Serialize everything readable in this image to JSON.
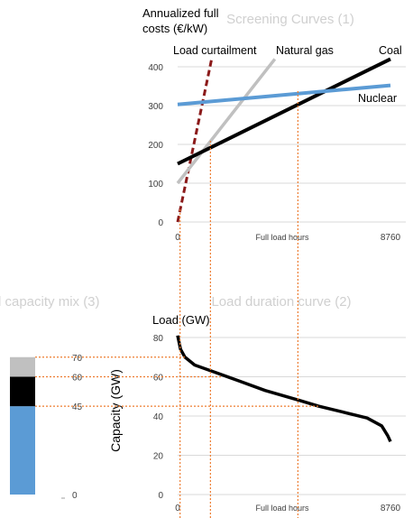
{
  "chart_data": [
    {
      "type": "line",
      "title": "Screening Curves (1)",
      "ylabel": "Annualized full costs (€/kW)",
      "ylabel_lines": [
        "Annualized full",
        "costs (€/kW)"
      ],
      "xlabel": "Full load hours",
      "x_ticks": [
        "0",
        "8760"
      ],
      "y_ticks": [
        "0",
        "100",
        "200",
        "300",
        "400"
      ],
      "xlim": [
        0,
        8760
      ],
      "ylim": [
        0,
        400
      ],
      "grid": true,
      "series": [
        {
          "name": "Load curtailment",
          "color": "#8b1a1a",
          "dashed": true,
          "points": [
            [
              0,
              0
            ],
            [
              1400,
              420
            ]
          ]
        },
        {
          "name": "Natural gas",
          "color": "#c0c0c0",
          "points": [
            [
              0,
              100
            ],
            [
              4000,
              420
            ]
          ]
        },
        {
          "name": "Coal",
          "color": "#000000",
          "points": [
            [
              0,
              150
            ],
            [
              8760,
              420
            ]
          ]
        },
        {
          "name": "Nuclear",
          "color": "#5b9bd5",
          "points": [
            [
              0,
              303
            ],
            [
              8760,
              352
            ]
          ]
        }
      ]
    },
    {
      "type": "line",
      "title": "Load duration curve (2)",
      "ylabel": "Load (GW)",
      "xlabel": "Full load hours",
      "x_ticks": [
        "0",
        "8760"
      ],
      "y_ticks": [
        "0",
        "20",
        "40",
        "60",
        "80"
      ],
      "xlim": [
        0,
        8760
      ],
      "ylim": [
        0,
        80
      ],
      "grid": true,
      "series": [
        {
          "name": "Load",
          "color": "#000000",
          "points": [
            [
              0,
              81
            ],
            [
              120,
              74
            ],
            [
              300,
              70
            ],
            [
              700,
              66
            ],
            [
              1600,
              62
            ],
            [
              2500,
              58
            ],
            [
              3600,
              53
            ],
            [
              5000,
              48
            ],
            [
              5800,
              45
            ],
            [
              6800,
              42
            ],
            [
              7800,
              39
            ],
            [
              8400,
              35
            ],
            [
              8650,
              30
            ],
            [
              8760,
              27
            ]
          ]
        }
      ]
    },
    {
      "type": "bar",
      "title": "l capacity mix (3)",
      "ylabel": "Capacity (GW)",
      "y_ticks": [
        "0",
        "45",
        "60",
        "70"
      ],
      "ylim": [
        0,
        80
      ],
      "stack": [
        {
          "name": "Nuclear",
          "from": 0,
          "to": 45,
          "color": "#5b9bd5"
        },
        {
          "name": "Coal",
          "from": 45,
          "to": 60,
          "color": "#000000"
        },
        {
          "name": "Natural gas",
          "from": 60,
          "to": 70,
          "color": "#c0c0c0"
        }
      ]
    }
  ],
  "guides": {
    "color": "#ed7d31",
    "vertical_x_hours": [
      100,
      1350,
      4950
    ],
    "horizontal_gw": [
      70,
      60,
      45
    ]
  }
}
